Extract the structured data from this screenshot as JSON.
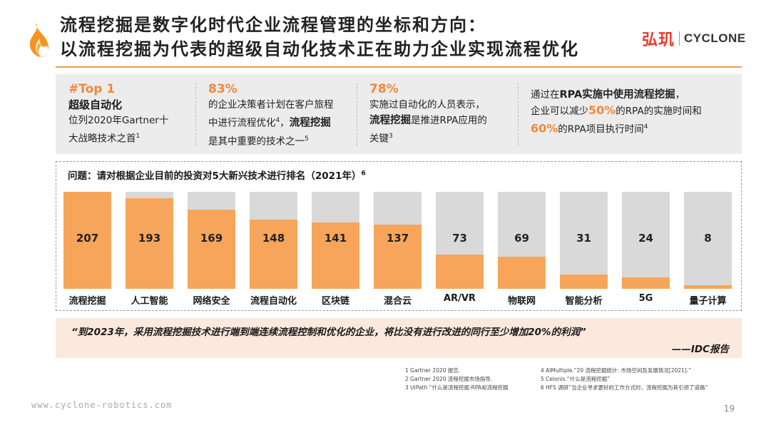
{
  "header": {
    "title_line1": "流程挖掘是数字化时代企业流程管理的坐标和方向：",
    "title_line2": "以流程挖掘为代表的超级自动化技术正在助力企业实现流程优化",
    "brand_cn": "弘玑",
    "brand_en": "CYCLONE"
  },
  "stats": {
    "s1": {
      "big": "#Top 1",
      "head": "超级自动化",
      "line1": "位列2020年Gartner十",
      "line2": "大战略技术之首",
      "sup": "1"
    },
    "s2": {
      "big": "83%",
      "line1": "的企业决策者计划在客户旅程",
      "line2a": "中进行流程优化",
      "sup1": "4",
      "line2b": "，",
      "bold": "流程挖掘",
      "line3": "是其中重要的技术之一",
      "sup2": "5"
    },
    "s3": {
      "big": "78%",
      "line1": "实施过自动化的人员表示，",
      "bold": "流程挖掘",
      "line2b": "是推进RPA应用的",
      "line3": "关键",
      "sup": "3"
    },
    "s4": {
      "line1a": "通过在",
      "bold": "RPA实施中使用流程挖掘",
      "line1b": "，",
      "line2a": "企业可以减少",
      "pct1": "50%",
      "line2b": "的RPA的实施时间和",
      "pct2": "60%",
      "line3": "的RPA项目执行时间",
      "sup": "4"
    }
  },
  "chart_data": {
    "type": "bar",
    "title": "问题：请对根据企业目前的投资对5大新兴技术进行排名（2021年）",
    "title_sup": "6",
    "categories": [
      "流程挖掘",
      "人工智能",
      "网络安全",
      "流程自动化",
      "区块链",
      "混合云",
      "AR/VR",
      "物联网",
      "智能分析",
      "5G",
      "量子计算"
    ],
    "values": [
      207,
      193,
      169,
      148,
      141,
      137,
      73,
      69,
      31,
      24,
      8
    ],
    "ylim": [
      0,
      207
    ],
    "colors": {
      "fill": "#f6a55a",
      "background": "#d9d9d9"
    }
  },
  "quote": {
    "text": "“到2023年，采用流程挖掘技术进行端到端连续流程控制和优化的企业，将比没有进行改进的同行至少增加20%的利润”",
    "source": "——IDC报告"
  },
  "references": [
    "1 Gartner 2020 报告.",
    "4 AIMultiple.“20 流程挖掘统计: 市场空间及发展情况[2021].”",
    "2 Gartner 2020 流程挖掘市场指导.",
    "5 Celonis.“什么是流程挖掘”",
    "3 UiPath “什么是流程挖掘-RPA和流程挖掘",
    "6 HFS 调研“当企业寻求更好的工作方式时，流程挖掘为其引领了道路”"
  ],
  "footer": {
    "url": "www.cyclone-robotics.com",
    "page": "19"
  }
}
